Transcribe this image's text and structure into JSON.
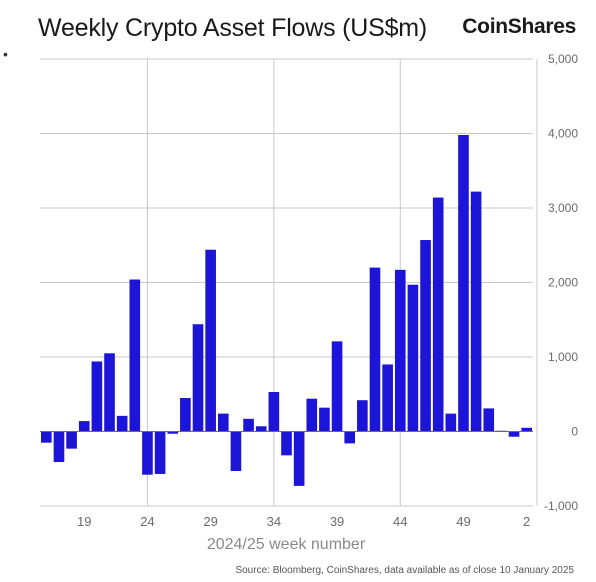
{
  "title": "Weekly Crypto Asset Flows (US$m)",
  "brand": "CoinShares",
  "bullet": "•",
  "source": "Source: Bloomberg, CoinShares, data available as of close 10 January 2025",
  "colors": {
    "bar": "#1c14d6",
    "grid": "#c8c8c8",
    "axis": "#6b6b6b",
    "xlabel": "#8a8a8a"
  },
  "chart_data": {
    "type": "bar",
    "title": "Weekly Crypto Asset Flows (US$m)",
    "xlabel": "2024/25 week number",
    "ylabel": "",
    "ylim": [
      -1000,
      5000
    ],
    "yticks": [
      -1000,
      0,
      1000,
      2000,
      3000,
      4000,
      5000
    ],
    "ytick_labels": [
      "-1,000",
      "0",
      "1,000",
      "2,000",
      "3,000",
      "4,000",
      "5,000"
    ],
    "xtick_labels": [
      "19",
      "24",
      "29",
      "34",
      "39",
      "44",
      "49",
      "2"
    ],
    "xtick_weeks": [
      19,
      24,
      29,
      34,
      39,
      44,
      49,
      54
    ],
    "x_gridlines_at": [
      24,
      34,
      44
    ],
    "grid": true,
    "categories": [
      16,
      17,
      18,
      19,
      20,
      21,
      22,
      23,
      24,
      25,
      26,
      27,
      28,
      29,
      30,
      31,
      32,
      33,
      34,
      35,
      36,
      37,
      38,
      39,
      40,
      41,
      42,
      43,
      44,
      45,
      46,
      47,
      48,
      49,
      50,
      51,
      52,
      53,
      54
    ],
    "values": [
      -150,
      -410,
      -230,
      140,
      940,
      1050,
      210,
      2040,
      -580,
      -570,
      -30,
      450,
      1440,
      2440,
      240,
      -530,
      170,
      70,
      530,
      -320,
      -730,
      440,
      320,
      1210,
      -160,
      420,
      2200,
      900,
      2170,
      1970,
      2570,
      3140,
      240,
      3980,
      3220,
      310,
      10,
      -70,
      50
    ]
  }
}
